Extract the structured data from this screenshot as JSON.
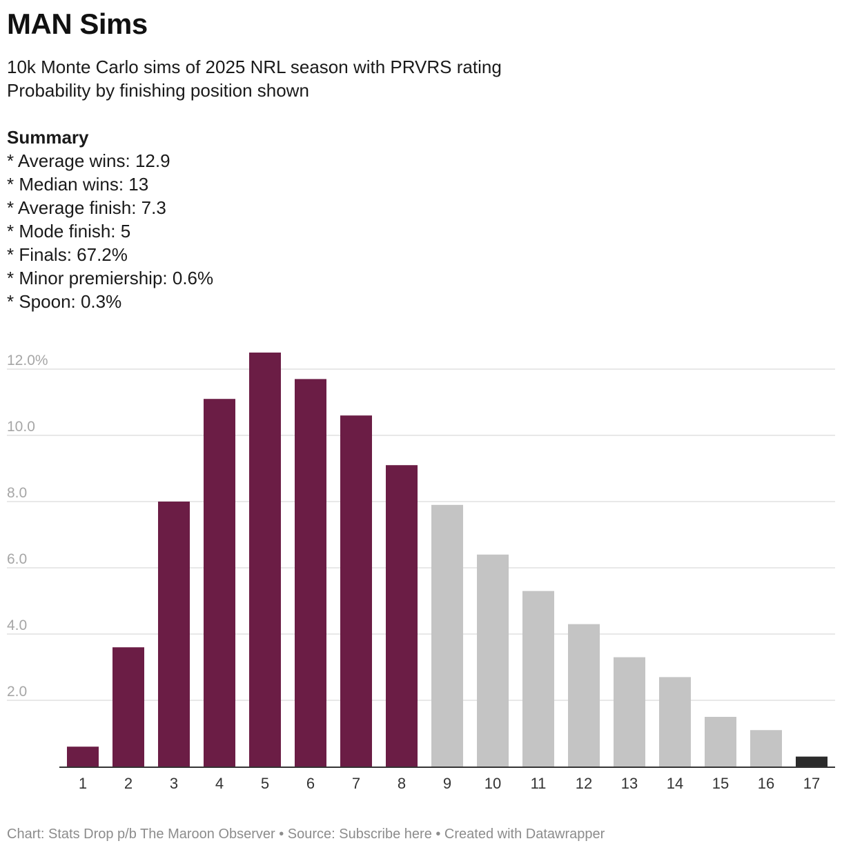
{
  "header": {
    "title": "MAN Sims",
    "subtitle_lines": [
      "10k Monte Carlo sims of 2025 NRL season with PRVRS rating",
      "Probability by finishing position shown"
    ],
    "summary_heading": "Summary",
    "summary_items": [
      "* Average wins: 12.9",
      "* Median wins: 13",
      "* Average finish: 7.3",
      "* Mode finish: 5",
      "* Finals: 67.2%",
      "* Minor premiership: 0.6%",
      "* Spoon: 0.3%"
    ]
  },
  "footer": {
    "text": "Chart: Stats Drop p/b The Maroon Observer • Source: Subscribe here • Created with Datawrapper"
  },
  "colors": {
    "finals": "#6b1d45",
    "non_finals": "#c4c4c4",
    "spoon": "#2b2b2b",
    "grid": "#e0e0e0",
    "baseline": "#333333"
  },
  "chart_data": {
    "type": "bar",
    "title": "MAN Sims",
    "xlabel": "",
    "ylabel": "",
    "categories": [
      "1",
      "2",
      "3",
      "4",
      "5",
      "6",
      "7",
      "8",
      "9",
      "10",
      "11",
      "12",
      "13",
      "14",
      "15",
      "16",
      "17"
    ],
    "values": [
      0.6,
      3.6,
      8.0,
      11.1,
      12.5,
      11.7,
      10.6,
      9.1,
      7.9,
      6.4,
      5.3,
      4.3,
      3.3,
      2.7,
      1.5,
      1.1,
      0.3
    ],
    "bar_groups": [
      "finals",
      "finals",
      "finals",
      "finals",
      "finals",
      "finals",
      "finals",
      "finals",
      "non_finals",
      "non_finals",
      "non_finals",
      "non_finals",
      "non_finals",
      "non_finals",
      "non_finals",
      "non_finals",
      "spoon"
    ],
    "yticks": [
      2.0,
      4.0,
      6.0,
      8.0,
      10.0,
      12.0
    ],
    "ytick_labels": [
      "2.0",
      "4.0",
      "6.0",
      "8.0",
      "10.0",
      "12.0%"
    ],
    "ylim": [
      0,
      12.0
    ],
    "grid": true,
    "legend": "none"
  }
}
